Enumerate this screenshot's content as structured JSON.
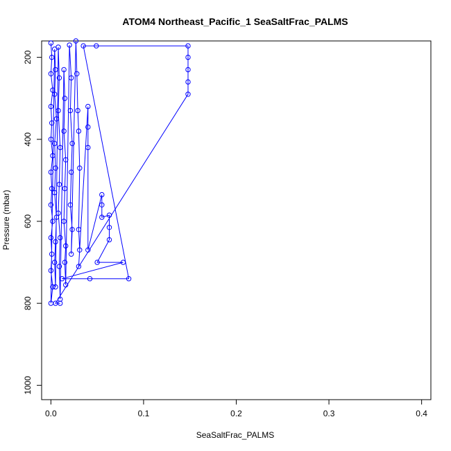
{
  "chart_data": {
    "type": "scatter",
    "title": "ATOM4 Northeast_Pacific_1 SeaSaltFrac_PALMS",
    "xlabel": "SeaSaltFrac_PALMS",
    "ylabel": "Pressure (mbar)",
    "xlim": [
      -0.01,
      0.41
    ],
    "ylim": [
      1035,
      160
    ],
    "y_inverted": true,
    "x_ticks": [
      0.0,
      0.1,
      0.2,
      0.3,
      0.4
    ],
    "x_tick_labels": [
      "0.0",
      "0.1",
      "0.2",
      "0.3",
      "0.4"
    ],
    "y_ticks": [
      200,
      400,
      600,
      800,
      1000
    ],
    "y_tick_labels": [
      "200",
      "400",
      "600",
      "800",
      "1000"
    ],
    "grid": false,
    "marker": "open-circle",
    "color": "#0000ff",
    "series": [
      {
        "points": [
          [
            0.0,
            165
          ],
          [
            0.001,
            200
          ],
          [
            0.0,
            240
          ],
          [
            0.002,
            280
          ],
          [
            0.0,
            320
          ],
          [
            0.001,
            360
          ],
          [
            0.0,
            400
          ],
          [
            0.002,
            440
          ],
          [
            0.0,
            480
          ],
          [
            0.001,
            520
          ],
          [
            0.0,
            560
          ],
          [
            0.002,
            600
          ],
          [
            0.0,
            640
          ],
          [
            0.001,
            680
          ],
          [
            0.0,
            720
          ],
          [
            0.002,
            760
          ],
          [
            0.0,
            800
          ],
          [
            0.004,
            180
          ],
          [
            0.005,
            230
          ],
          [
            0.004,
            290
          ],
          [
            0.006,
            350
          ],
          [
            0.004,
            410
          ],
          [
            0.005,
            470
          ],
          [
            0.004,
            530
          ],
          [
            0.006,
            590
          ],
          [
            0.005,
            650
          ],
          [
            0.004,
            700
          ],
          [
            0.005,
            760
          ],
          [
            0.008,
            175
          ],
          [
            0.009,
            250
          ],
          [
            0.008,
            330
          ],
          [
            0.01,
            420
          ],
          [
            0.009,
            510
          ],
          [
            0.008,
            580
          ],
          [
            0.01,
            640
          ],
          [
            0.009,
            710
          ],
          [
            0.01,
            790
          ],
          [
            0.014,
            230
          ],
          [
            0.015,
            300
          ],
          [
            0.014,
            380
          ],
          [
            0.016,
            450
          ],
          [
            0.015,
            520
          ],
          [
            0.014,
            600
          ],
          [
            0.016,
            660
          ],
          [
            0.015,
            700
          ],
          [
            0.016,
            755
          ],
          [
            0.02,
            170
          ],
          [
            0.022,
            250
          ],
          [
            0.021,
            330
          ],
          [
            0.023,
            410
          ],
          [
            0.022,
            480
          ],
          [
            0.021,
            560
          ],
          [
            0.023,
            620
          ],
          [
            0.022,
            680
          ],
          [
            0.027,
            160
          ],
          [
            0.028,
            240
          ],
          [
            0.029,
            330
          ],
          [
            0.03,
            380
          ],
          [
            0.031,
            470
          ],
          [
            0.03,
            620
          ],
          [
            0.031,
            670
          ],
          [
            0.03,
            710
          ],
          [
            0.04,
            320
          ],
          [
            0.04,
            370
          ],
          [
            0.04,
            420
          ],
          [
            0.04,
            670
          ],
          [
            0.055,
            535
          ],
          [
            0.055,
            560
          ],
          [
            0.055,
            590
          ],
          [
            0.063,
            585
          ],
          [
            0.063,
            615
          ],
          [
            0.063,
            645
          ],
          [
            0.05,
            700
          ],
          [
            0.078,
            700
          ],
          [
            0.012,
            740
          ],
          [
            0.042,
            740
          ],
          [
            0.084,
            740
          ],
          [
            0.035,
            172
          ],
          [
            0.049,
            172
          ],
          [
            0.148,
            172
          ],
          [
            0.148,
            200
          ],
          [
            0.148,
            230
          ],
          [
            0.148,
            260
          ],
          [
            0.148,
            290
          ],
          [
            0.005,
            800
          ],
          [
            0.01,
            800
          ]
        ]
      }
    ]
  }
}
